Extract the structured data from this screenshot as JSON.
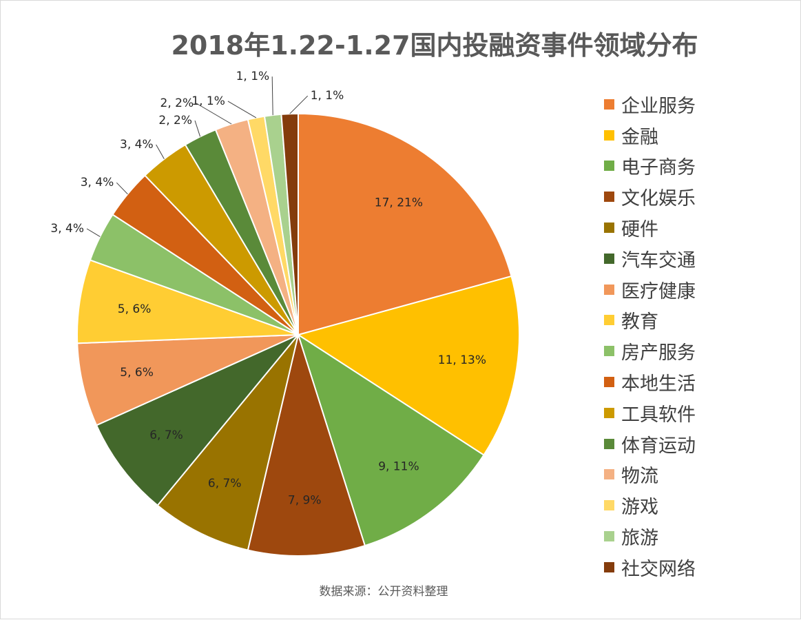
{
  "chart_data": {
    "type": "pie",
    "title": "2018年1.22-1.27国内投融资事件领域分布",
    "source_note": "数据来源：公开资料整理",
    "legend_position": "right",
    "slices": [
      {
        "label": "企业服务",
        "value": 17,
        "percent_label": "21%",
        "color": "#ED7D31"
      },
      {
        "label": "金融",
        "value": 11,
        "percent_label": "13%",
        "color": "#FFC000"
      },
      {
        "label": "电子商务",
        "value": 9,
        "percent_label": "11%",
        "color": "#70AD47"
      },
      {
        "label": "文化娱乐",
        "value": 7,
        "percent_label": "9%",
        "color": "#9E480E"
      },
      {
        "label": "硬件",
        "value": 6,
        "percent_label": "7%",
        "color": "#997300"
      },
      {
        "label": "汽车交通",
        "value": 6,
        "percent_label": "7%",
        "color": "#43682B"
      },
      {
        "label": "医疗健康",
        "value": 5,
        "percent_label": "6%",
        "color": "#F1975A"
      },
      {
        "label": "教育",
        "value": 5,
        "percent_label": "6%",
        "color": "#FFCD33"
      },
      {
        "label": "房产服务",
        "value": 3,
        "percent_label": "4%",
        "color": "#8CC168"
      },
      {
        "label": "本地生活",
        "value": 3,
        "percent_label": "4%",
        "color": "#D26012"
      },
      {
        "label": "工具软件",
        "value": 3,
        "percent_label": "4%",
        "color": "#CC9A00"
      },
      {
        "label": "体育运动",
        "value": 2,
        "percent_label": "2%",
        "color": "#5A8A39"
      },
      {
        "label": "物流",
        "value": 2,
        "percent_label": "2%",
        "color": "#F4B183"
      },
      {
        "label": "游戏",
        "value": 1,
        "percent_label": "1%",
        "color": "#FFD966"
      },
      {
        "label": "旅游",
        "value": 1,
        "percent_label": "1%",
        "color": "#A9D18E"
      },
      {
        "label": "社交网络",
        "value": 1,
        "percent_label": "1%",
        "color": "#843C0C"
      }
    ]
  }
}
